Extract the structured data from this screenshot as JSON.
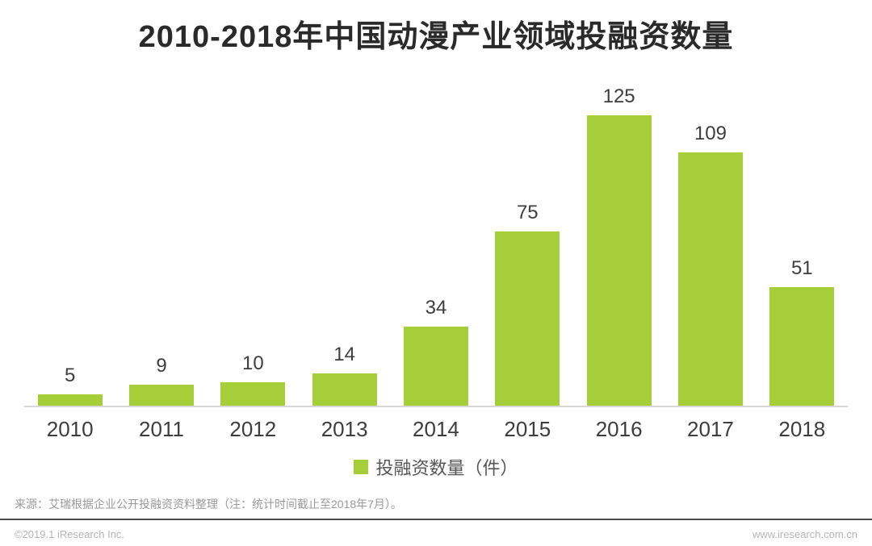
{
  "title": "2010-2018年中国动漫产业领域投融资数量",
  "chart_data": {
    "type": "bar",
    "categories": [
      "2010",
      "2011",
      "2012",
      "2013",
      "2014",
      "2015",
      "2016",
      "2017",
      "2018"
    ],
    "values": [
      5,
      9,
      10,
      14,
      34,
      75,
      125,
      109,
      51
    ],
    "title": "2010-2018年中国动漫产业领域投融资数量",
    "xlabel": "",
    "ylabel": "投融资数量（件）",
    "ylim": [
      0,
      130
    ],
    "grid": false,
    "legend_position": "bottom",
    "legend": [
      "投融资数量（件）"
    ],
    "data_labels_shown": true
  },
  "legend": {
    "label": "投融资数量（件）"
  },
  "source_note": "来源：艾瑞根据企业公开投融资资料整理（注：统计时间截止至2018年7月）。",
  "footer": {
    "copyright": "©2019.1 iResearch Inc.",
    "website": "www.iresearch.com.cn"
  },
  "colors": {
    "bar": "#a6ce39",
    "title_text": "#2a2a2a",
    "label_text": "#3d3d3d",
    "axis_line": "#d8d8d8",
    "muted_text": "#999999",
    "divider": "#4d4d4d",
    "footer_text": "#b5b5b5"
  }
}
